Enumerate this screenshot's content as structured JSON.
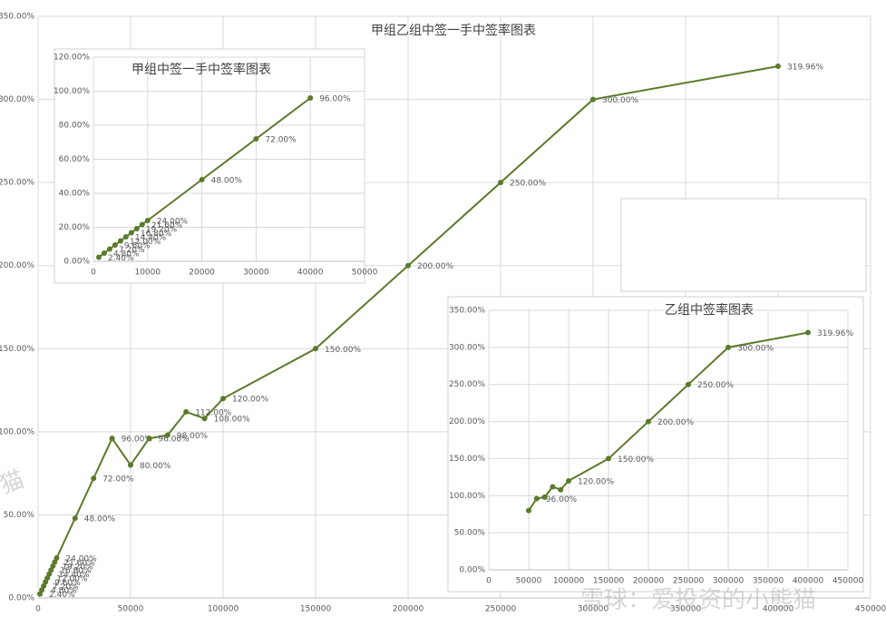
{
  "chart_data": [
    {
      "type": "line",
      "title": "甲组乙组中签一手中签率图表",
      "color": "#5b7a2b",
      "grid": true,
      "x": [
        1000,
        2000,
        3000,
        4000,
        5000,
        6000,
        7000,
        8000,
        9000,
        10000,
        20000,
        30000,
        40000,
        50000,
        60000,
        70000,
        80000,
        90000,
        100000,
        150000,
        200000,
        250000,
        300000,
        400000
      ],
      "values": [
        2.4,
        4.8,
        7.2,
        9.6,
        12,
        14.4,
        16.8,
        19.2,
        21.6,
        24,
        48,
        72,
        96,
        80,
        96,
        98,
        112,
        108,
        120,
        150,
        200,
        250,
        300,
        319.96
      ],
      "value_labels": [
        "2.40%",
        "4.80%",
        "7.20%",
        "9.60%",
        "12.00%",
        "14.40%",
        "16.80%",
        "19.20%",
        "21.60%",
        "24.00%",
        "48.00%",
        "72.00%",
        "96.00%",
        "80.00%",
        "96.00%",
        "98.00%",
        "112.00%",
        "108.00%",
        "120.00%",
        "150.00%",
        "200.00%",
        "250.00%",
        "300.00%",
        "319.96%"
      ],
      "xlim": [
        0,
        450000
      ],
      "xticks": [
        0,
        50000,
        100000,
        150000,
        200000,
        250000,
        300000,
        350000,
        400000,
        450000
      ],
      "ylim": [
        0,
        350
      ],
      "yticks": [
        {
          "value": 0,
          "label": "0.00%"
        },
        {
          "value": 50,
          "label": "50.00%"
        },
        {
          "value": 100,
          "label": "100.00%"
        },
        {
          "value": 150,
          "label": "150.00%"
        },
        {
          "value": 200,
          "label": "200.00%"
        },
        {
          "value": 250,
          "label": "250.00%"
        },
        {
          "value": 300,
          "label": "300.00%"
        },
        {
          "value": 350,
          "label": "350.00%"
        }
      ]
    },
    {
      "type": "line",
      "title": "甲组中签一手中签率图表",
      "color": "#5b7a2b",
      "grid": true,
      "x": [
        1000,
        2000,
        3000,
        4000,
        5000,
        6000,
        7000,
        8000,
        9000,
        10000,
        20000,
        30000,
        40000
      ],
      "values": [
        2.4,
        4.8,
        7.2,
        9.6,
        12,
        14.4,
        16.8,
        19.2,
        21.6,
        24,
        48,
        72,
        96
      ],
      "value_labels": [
        "2.40%",
        "4.80%",
        "7.20%",
        "9.60%",
        "12.00%",
        "14.40%",
        "16.80%",
        "19.20%",
        "21.60%",
        "24.00%",
        "48.00%",
        "72.00%",
        "96.00%"
      ],
      "xlim": [
        0,
        50000
      ],
      "xticks": [
        0,
        10000,
        20000,
        30000,
        40000,
        50000
      ],
      "ylim": [
        0,
        120
      ],
      "yticks": [
        {
          "value": 0,
          "label": "0.00%"
        },
        {
          "value": 20,
          "label": "20.00%"
        },
        {
          "value": 40,
          "label": "40.00%"
        },
        {
          "value": 60,
          "label": "60.00%"
        },
        {
          "value": 80,
          "label": "80.00%"
        },
        {
          "value": 100,
          "label": "100.00%"
        },
        {
          "value": 120,
          "label": "120.00%"
        }
      ]
    },
    {
      "type": "line",
      "title": "乙组中签率图表",
      "color": "#5b7a2b",
      "grid": true,
      "x": [
        50000,
        60000,
        70000,
        80000,
        90000,
        100000,
        150000,
        200000,
        250000,
        300000,
        400000
      ],
      "values": [
        80,
        96,
        98,
        112,
        108,
        120,
        150,
        200,
        250,
        300,
        319.96
      ],
      "value_labels": [
        null,
        "96.00%",
        null,
        null,
        null,
        "120.00%",
        "150.00%",
        "200.00%",
        "250.00%",
        "300.00%",
        "319.96%"
      ],
      "xlim": [
        0,
        450000
      ],
      "xticks": [
        0,
        50000,
        100000,
        150000,
        200000,
        250000,
        300000,
        350000,
        400000,
        450000
      ],
      "ylim": [
        0,
        350
      ],
      "yticks": [
        {
          "value": 0,
          "label": "0.00%"
        },
        {
          "value": 50,
          "label": "50.00%"
        },
        {
          "value": 100,
          "label": "100.00%"
        },
        {
          "value": 150,
          "label": "150.00%"
        },
        {
          "value": 200,
          "label": "200.00%"
        },
        {
          "value": 250,
          "label": "250.00%"
        },
        {
          "value": 300,
          "label": "300.00%"
        },
        {
          "value": 350,
          "label": "350.00%"
        }
      ]
    }
  ],
  "watermarks": [
    "雪球：爱投资的小熊猫",
    "猫"
  ]
}
